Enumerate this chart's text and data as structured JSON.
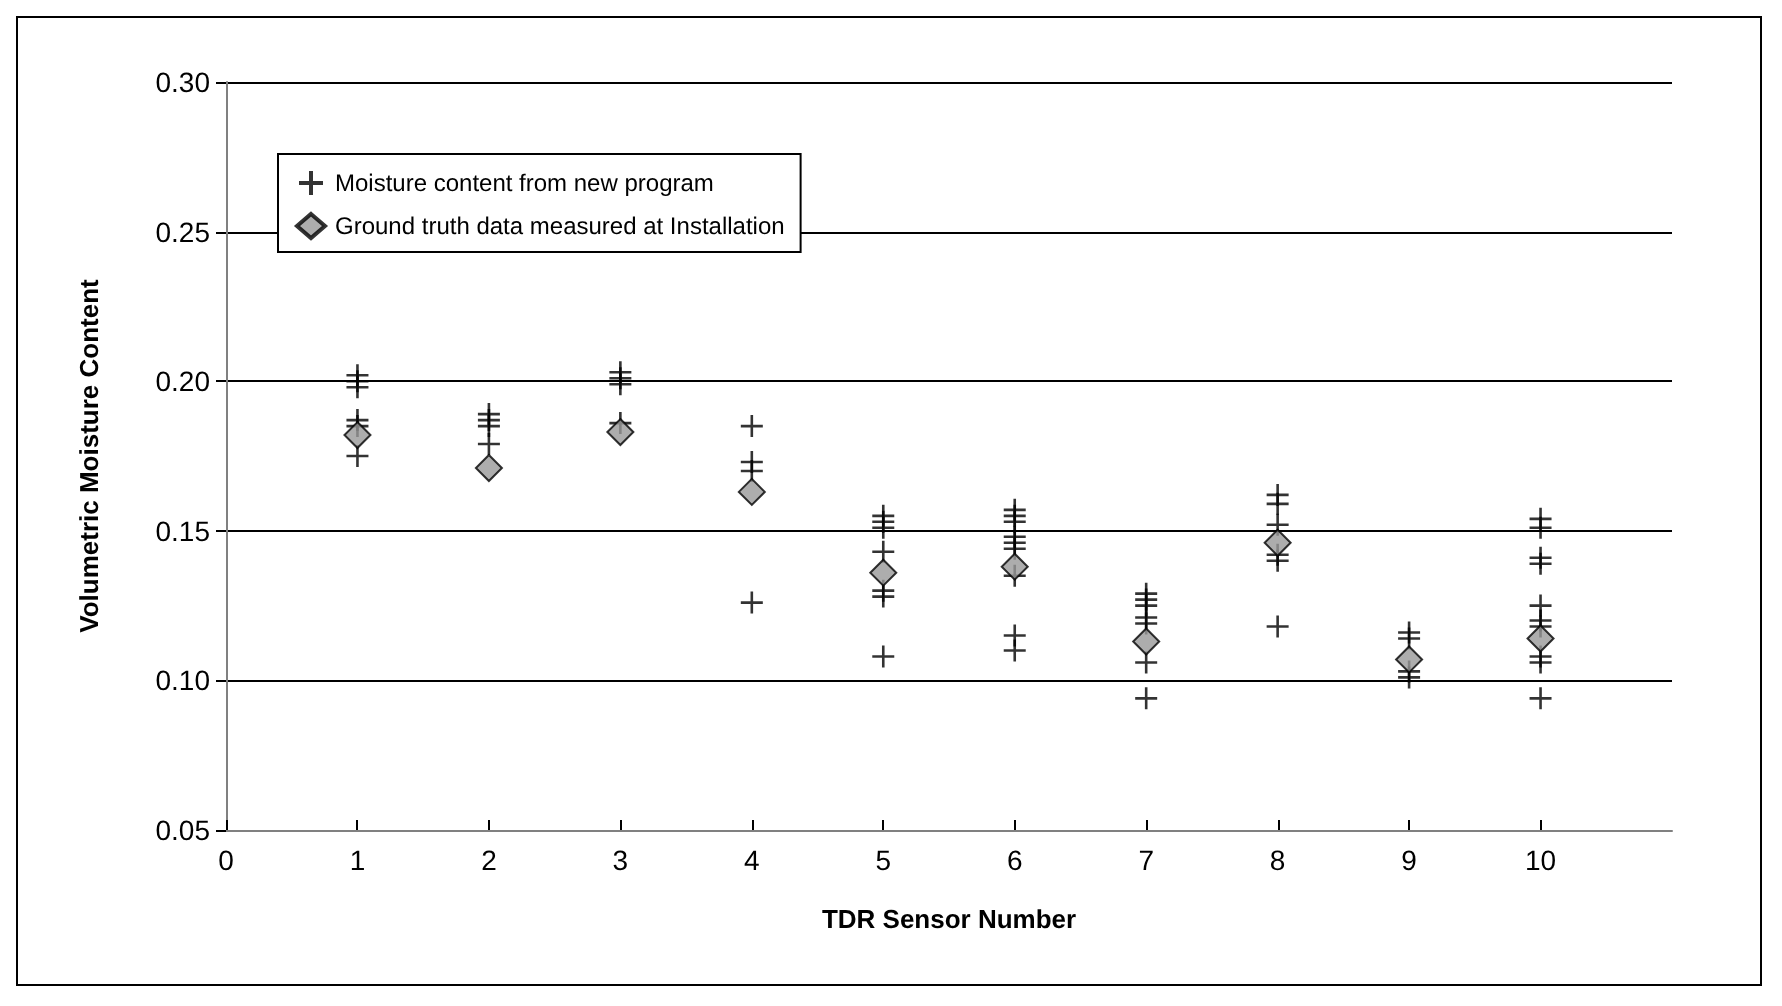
{
  "chart_data": {
    "type": "scatter",
    "xlabel": "TDR Sensor Number",
    "ylabel": "Volumetric Moisture Content",
    "xlim": [
      0,
      11
    ],
    "xticks": [
      0,
      1,
      2,
      3,
      4,
      5,
      6,
      7,
      8,
      9,
      10
    ],
    "ylim": [
      0.05,
      0.3
    ],
    "yticks": [
      0.05,
      {
        "value": 0.1,
        "label": "0.10"
      },
      0.15,
      {
        "value": 0.2,
        "label": "0.20"
      },
      0.25,
      {
        "value": 0.3,
        "label": "0.30"
      }
    ],
    "grid": "y",
    "legend": "top left",
    "series": [
      {
        "name": "Moisture content from new program",
        "color": "#000000",
        "marker": "cross",
        "x": [
          1,
          1,
          1,
          1,
          1,
          1,
          2,
          2,
          2,
          2,
          3,
          3,
          3,
          3,
          4,
          4,
          4,
          4,
          5,
          5,
          5,
          5,
          5,
          5,
          5,
          6,
          6,
          6,
          6,
          6,
          6,
          6,
          6,
          6,
          7,
          7,
          7,
          7,
          7,
          7,
          7,
          8,
          8,
          8,
          8,
          8,
          8,
          9,
          9,
          9,
          9,
          10,
          10,
          10,
          10,
          10,
          10,
          10,
          10,
          10,
          10
        ],
        "values": [
          0.202,
          0.2,
          0.198,
          0.187,
          0.185,
          0.175,
          0.189,
          0.187,
          0.185,
          0.179,
          0.203,
          0.201,
          0.199,
          0.186,
          0.185,
          0.173,
          0.17,
          0.126,
          0.155,
          0.153,
          0.151,
          0.143,
          0.13,
          0.128,
          0.108,
          0.157,
          0.155,
          0.153,
          0.148,
          0.146,
          0.144,
          0.135,
          0.115,
          0.11,
          0.129,
          0.127,
          0.125,
          0.121,
          0.119,
          0.106,
          0.094,
          0.162,
          0.159,
          0.152,
          0.142,
          0.14,
          0.118,
          0.116,
          0.114,
          0.103,
          0.101,
          0.154,
          0.151,
          0.141,
          0.139,
          0.125,
          0.12,
          0.118,
          0.108,
          0.106,
          0.094
        ]
      },
      {
        "name": "Ground truth data measured at Installation",
        "color": "#999999",
        "marker": "diamond",
        "x": [
          1,
          2,
          3,
          4,
          5,
          6,
          7,
          8,
          9,
          10
        ],
        "values": [
          0.182,
          0.171,
          0.183,
          0.163,
          0.136,
          0.138,
          0.113,
          0.146,
          0.107,
          0.114
        ]
      }
    ]
  }
}
